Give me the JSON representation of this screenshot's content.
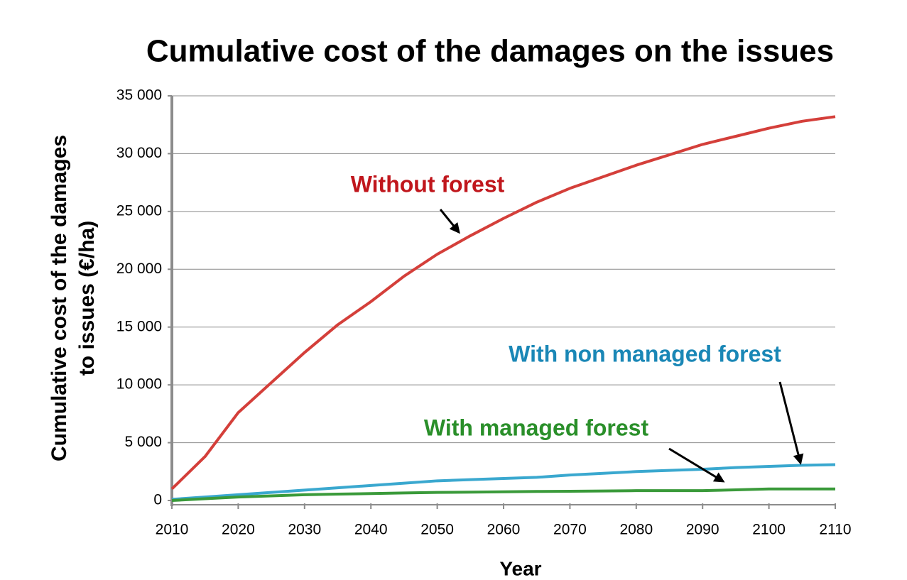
{
  "chart_data": {
    "type": "line",
    "title": "Cumulative cost of the damages on the issues",
    "ylabel": [
      "Cumulative cost of the damages",
      "to issues (€/ha)"
    ],
    "xlabel": "Year",
    "x": [
      2010,
      2015,
      2020,
      2025,
      2030,
      2035,
      2040,
      2045,
      2050,
      2055,
      2060,
      2065,
      2070,
      2075,
      2080,
      2085,
      2090,
      2095,
      2100,
      2105,
      2110
    ],
    "series": [
      {
        "name": "Without forest",
        "color": "#d43f3a",
        "label_color": "#c0161c",
        "values": [
          1000,
          3800,
          7600,
          10200,
          12800,
          15200,
          17200,
          19400,
          21300,
          22900,
          24400,
          25800,
          27000,
          28000,
          29000,
          29900,
          30800,
          31500,
          32200,
          32800,
          33200
        ]
      },
      {
        "name": "With non managed forest",
        "color": "#3aa8cf",
        "label_color": "#1a87b6",
        "values": [
          100,
          300,
          500,
          700,
          900,
          1100,
          1300,
          1500,
          1700,
          1800,
          1900,
          2000,
          2200,
          2350,
          2500,
          2600,
          2700,
          2850,
          2950,
          3050,
          3100
        ]
      },
      {
        "name": "With managed forest",
        "color": "#3a9a3a",
        "label_color": "#2a8f2a",
        "values": [
          0,
          150,
          300,
          400,
          500,
          550,
          600,
          650,
          700,
          720,
          750,
          780,
          800,
          820,
          850,
          850,
          850,
          920,
          1000,
          1000,
          1000
        ]
      }
    ],
    "xlim": [
      2010,
      2110
    ],
    "xticks": [
      2010,
      2020,
      2030,
      2040,
      2050,
      2060,
      2070,
      2080,
      2090,
      2100,
      2110
    ],
    "ylim": [
      0,
      35000
    ],
    "yticks": [
      0,
      {
        "value": 5000,
        "label": "5 000"
      },
      {
        "value": 10000,
        "label": "10 000"
      },
      {
        "value": 15000,
        "label": "15 000"
      },
      {
        "value": 20000,
        "label": "20 000"
      },
      {
        "value": 25000,
        "label": "25 000"
      },
      {
        "value": 30000,
        "label": "30 000"
      },
      {
        "value": 35000,
        "label": "35 000"
      }
    ],
    "grid": true
  }
}
